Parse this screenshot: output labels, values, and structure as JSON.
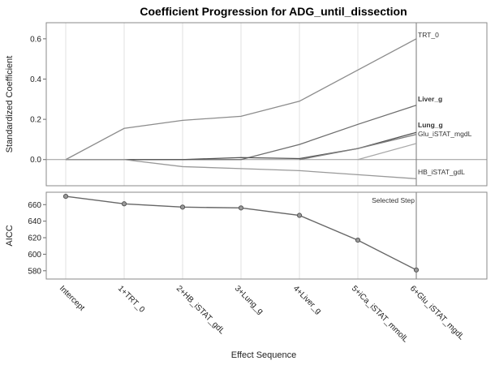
{
  "chart_data": {
    "type": "line",
    "title": "Coefficient Progression for ADG_until_dissection",
    "xlabel": "Effect Sequence",
    "categories": [
      "Intercept",
      "1+TRT_0",
      "2+HB_iSTAT_gdL",
      "3+Lung_g",
      "4+Liver_g",
      "5+iCa_iSTAT_mmolL",
      "6+Glu_iSTAT_mgdL"
    ],
    "selected_step_label": "Selected Step",
    "selected_step_index": 6,
    "panels": [
      {
        "name": "coefficients",
        "ylabel": "Standardized Coefficient",
        "ylim": [
          -0.13,
          0.68
        ],
        "yticks": [
          0.0,
          0.2,
          0.4,
          0.6
        ],
        "ytick_labels": [
          "0.0",
          "0.2",
          "0.4",
          "0.6"
        ],
        "series": [
          {
            "name": "TRT_0",
            "start": 0,
            "values": [
              0,
              0.155,
              0.195,
              0.215,
              0.29,
              0.445,
              0.6
            ],
            "color": "#8c8c8c"
          },
          {
            "name": "Liver_g",
            "start": 0,
            "values": [
              0,
              0,
              0,
              0,
              0.075,
              0.175,
              0.27
            ],
            "color": "#6e6e6e"
          },
          {
            "name": "Lung_g",
            "start": 0,
            "values": [
              0,
              0,
              0,
              0.01,
              0.005,
              0.055,
              0.135
            ],
            "color": "#555555"
          },
          {
            "name": "Glu_iSTAT_mgdL",
            "start": 5,
            "values": [
              0,
              0.08
            ],
            "color": "#a8a8a8"
          },
          {
            "name": "iCa_iSTAT_mmolL",
            "start": 4,
            "values": [
              0,
              0.055,
              0.125
            ],
            "color": "#7d7d7d"
          },
          {
            "name": "HB_iSTAT_gdL",
            "start": 0,
            "values": [
              0,
              0,
              -0.035,
              -0.045,
              -0.055,
              -0.075,
              -0.095
            ],
            "color": "#999999"
          }
        ],
        "right_labels": [
          {
            "text": "TRT_0",
            "value": 0.62,
            "bold": false
          },
          {
            "text": "Liver_g",
            "value": 0.302,
            "bold": true
          },
          {
            "text": "Lung_g",
            "value": 0.172,
            "bold": true
          },
          {
            "text": "Glu_iSTAT_mgdL",
            "value": 0.128,
            "bold": false
          },
          {
            "text": "HB_iSTAT_gdL",
            "value": -0.062,
            "bold": false
          }
        ]
      },
      {
        "name": "aicc",
        "ylabel": "AICC",
        "ylim": [
          570,
          675
        ],
        "yticks": [
          580,
          600,
          620,
          640,
          660
        ],
        "ytick_labels": [
          "580",
          "600",
          "620",
          "640",
          "660"
        ],
        "values": [
          670,
          661,
          657,
          656,
          647,
          617,
          581
        ]
      }
    ]
  }
}
